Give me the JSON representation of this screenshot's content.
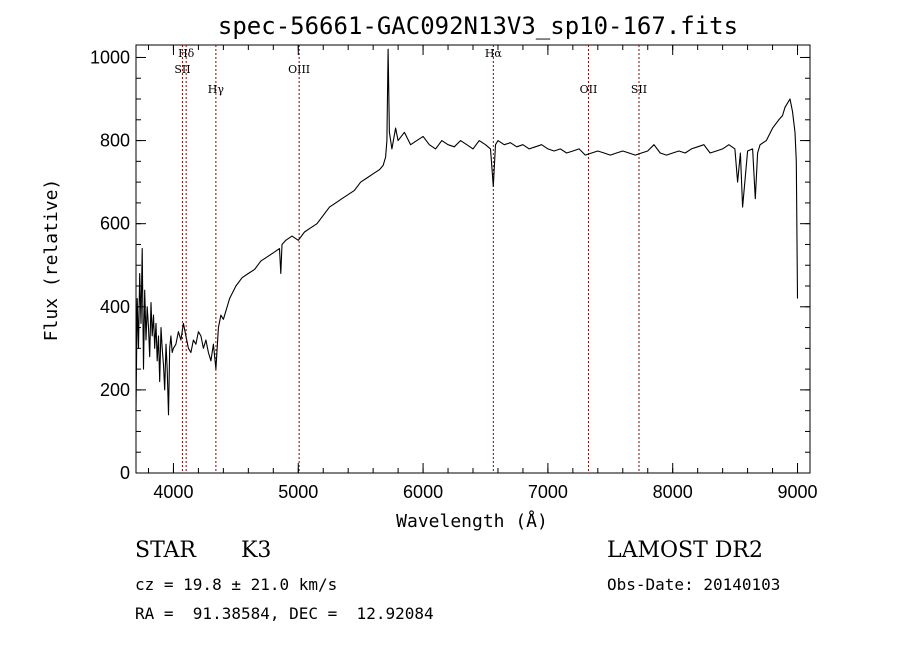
{
  "chart_data": {
    "type": "line",
    "title": "spec-56661-GAC092N13V3_sp10-167.fits",
    "xlabel": "Wavelength (Å)",
    "ylabel": "Flux (relative)",
    "xlim": [
      3700,
      9100
    ],
    "ylim": [
      0,
      1030
    ],
    "xticks": [
      4000,
      5000,
      6000,
      7000,
      8000,
      9000
    ],
    "yticks": [
      0,
      200,
      400,
      600,
      800,
      1000
    ],
    "grid": false,
    "line_color": "#000000",
    "marker_color": "#8b0000",
    "series": [
      {
        "x": [
          3700,
          3710,
          3720,
          3730,
          3740,
          3750,
          3760,
          3770,
          3780,
          3790,
          3800,
          3810,
          3820,
          3830,
          3840,
          3850,
          3860,
          3870,
          3880,
          3890,
          3900,
          3910,
          3920,
          3930,
          3940,
          3950,
          3960,
          3970,
          3980,
          3990,
          4000,
          4020,
          4040,
          4060,
          4080,
          4100,
          4120,
          4140,
          4160,
          4180,
          4200,
          4220,
          4240,
          4260,
          4280,
          4300,
          4320,
          4340,
          4360,
          4380,
          4400,
          4450,
          4500,
          4550,
          4600,
          4650,
          4700,
          4750,
          4800,
          4850,
          4860,
          4870,
          4900,
          4950,
          5000,
          5050,
          5100,
          5150,
          5200,
          5250,
          5300,
          5350,
          5400,
          5450,
          5500,
          5550,
          5600,
          5650,
          5680,
          5700,
          5710,
          5720,
          5730,
          5750,
          5780,
          5800,
          5850,
          5900,
          5950,
          6000,
          6050,
          6100,
          6150,
          6200,
          6250,
          6300,
          6350,
          6400,
          6450,
          6500,
          6540,
          6563,
          6580,
          6600,
          6650,
          6700,
          6750,
          6800,
          6850,
          6900,
          6950,
          7000,
          7050,
          7100,
          7150,
          7200,
          7250,
          7300,
          7350,
          7400,
          7450,
          7500,
          7550,
          7600,
          7650,
          7700,
          7750,
          7800,
          7850,
          7900,
          7950,
          8000,
          8050,
          8100,
          8150,
          8200,
          8250,
          8300,
          8350,
          8400,
          8450,
          8498,
          8520,
          8542,
          8560,
          8600,
          8640,
          8662,
          8680,
          8700,
          8750,
          8800,
          8850,
          8880,
          8900,
          8920,
          8940,
          8960,
          8980,
          8990,
          9000
        ],
        "y": [
          150,
          420,
          300,
          480,
          360,
          540,
          250,
          440,
          320,
          400,
          350,
          280,
          410,
          330,
          380,
          300,
          360,
          270,
          330,
          220,
          350,
          300,
          260,
          200,
          310,
          250,
          140,
          300,
          330,
          290,
          300,
          310,
          340,
          320,
          360,
          330,
          300,
          290,
          320,
          310,
          340,
          330,
          300,
          320,
          290,
          270,
          310,
          250,
          350,
          380,
          370,
          420,
          450,
          470,
          480,
          490,
          510,
          520,
          530,
          540,
          480,
          550,
          560,
          570,
          560,
          580,
          590,
          600,
          620,
          640,
          650,
          660,
          670,
          680,
          700,
          710,
          720,
          730,
          740,
          760,
          800,
          1020,
          820,
          780,
          830,
          800,
          820,
          790,
          800,
          810,
          790,
          780,
          800,
          790,
          785,
          800,
          790,
          780,
          800,
          790,
          780,
          690,
          790,
          800,
          790,
          795,
          785,
          790,
          780,
          785,
          790,
          780,
          775,
          780,
          770,
          775,
          780,
          765,
          770,
          775,
          770,
          765,
          770,
          775,
          770,
          765,
          770,
          775,
          790,
          770,
          765,
          770,
          775,
          770,
          780,
          785,
          790,
          770,
          775,
          780,
          790,
          780,
          700,
          770,
          640,
          775,
          780,
          660,
          770,
          790,
          800,
          830,
          850,
          860,
          880,
          890,
          900,
          870,
          820,
          750,
          420
        ]
      }
    ],
    "lines": [
      {
        "label": "Hδ",
        "x": 4102
      },
      {
        "label": "SII",
        "x": 4072
      },
      {
        "label": "Hγ",
        "x": 4340
      },
      {
        "label": "OIII",
        "x": 5007
      },
      {
        "label": "Hα",
        "x": 6563
      },
      {
        "label": "OII",
        "x": 7325
      },
      {
        "label": "SII",
        "x": 7730
      }
    ]
  },
  "info": {
    "object_type": "STAR",
    "subclass": "K3",
    "survey": "LAMOST DR2",
    "cz": "cz = 19.8 ± 21.0 km/s",
    "obs_date": "Obs-Date: 20140103",
    "coords": "RA =  91.38584, DEC =  12.92084"
  }
}
